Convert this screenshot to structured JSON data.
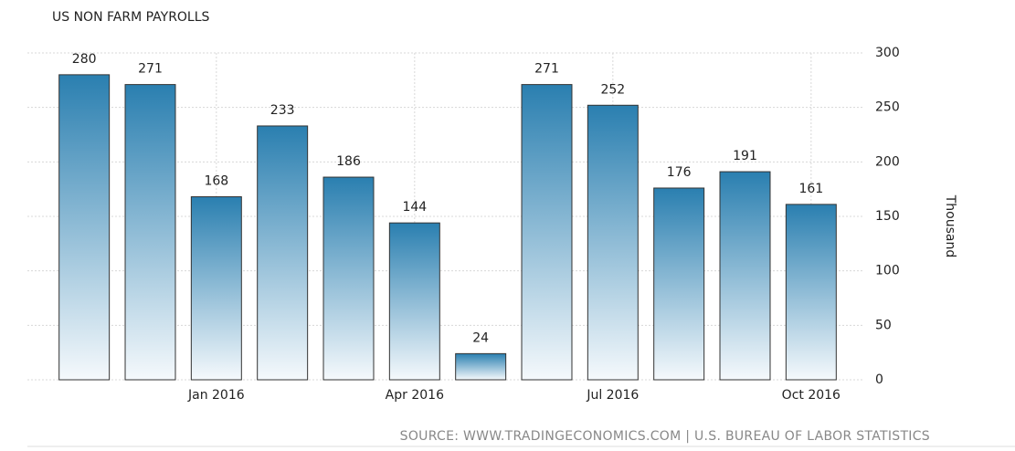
{
  "chart_data": {
    "type": "bar",
    "title": "US NON FARM PAYROLLS",
    "categories": [
      null,
      null,
      "Jan 2016",
      null,
      null,
      "Apr 2016",
      null,
      null,
      "Jul 2016",
      null,
      null,
      "Oct 2016"
    ],
    "values": [
      280,
      271,
      168,
      233,
      186,
      144,
      24,
      271,
      252,
      176,
      191,
      161
    ],
    "color": "#2a7fb0",
    "ylim": [
      0,
      300
    ],
    "yticks": [
      0,
      50,
      100,
      150,
      200,
      250,
      300
    ],
    "y_label": "Thousand",
    "grid": true,
    "source": "SOURCE: WWW.TRADINGECONOMICS.COM | U.S. BUREAU OF LABOR STATISTICS"
  }
}
